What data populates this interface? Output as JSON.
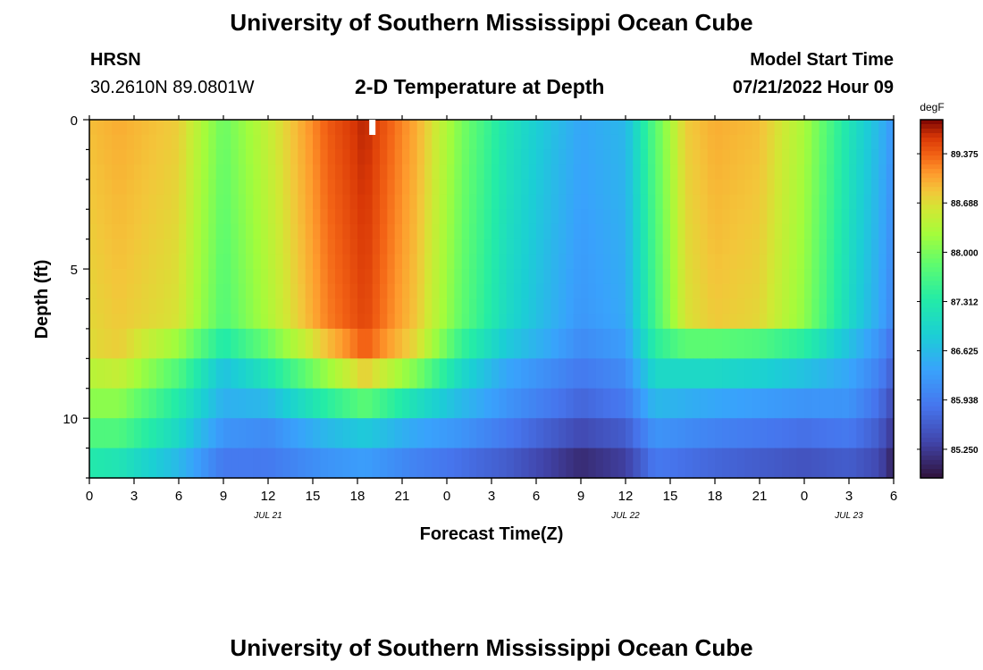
{
  "page_title": "University of Southern Mississippi Ocean Cube",
  "footer_title": "University of Southern Mississippi Ocean Cube",
  "station": {
    "name": "HRSN",
    "coords": "30.2610N  89.0801W"
  },
  "model": {
    "label": "Model Start Time",
    "value": "07/21/2022 Hour 09"
  },
  "chart_data": {
    "type": "heatmap",
    "title": "2-D Temperature at Depth",
    "xlabel": "Forecast Time(Z)",
    "ylabel": "Depth (ft)",
    "x_range_hours": [
      0,
      54
    ],
    "x_ticks": [
      {
        "h": 0,
        "label": "0"
      },
      {
        "h": 3,
        "label": "3"
      },
      {
        "h": 6,
        "label": "6"
      },
      {
        "h": 9,
        "label": "9"
      },
      {
        "h": 12,
        "label": "12"
      },
      {
        "h": 15,
        "label": "15"
      },
      {
        "h": 18,
        "label": "18"
      },
      {
        "h": 21,
        "label": "21"
      },
      {
        "h": 24,
        "label": "0"
      },
      {
        "h": 27,
        "label": "3"
      },
      {
        "h": 30,
        "label": "6"
      },
      {
        "h": 33,
        "label": "9"
      },
      {
        "h": 36,
        "label": "12"
      },
      {
        "h": 39,
        "label": "15"
      },
      {
        "h": 42,
        "label": "18"
      },
      {
        "h": 45,
        "label": "21"
      },
      {
        "h": 48,
        "label": "0"
      },
      {
        "h": 51,
        "label": "3"
      },
      {
        "h": 54,
        "label": "6"
      }
    ],
    "date_labels": [
      {
        "h": 12,
        "label": "JUL 21"
      },
      {
        "h": 36,
        "label": "JUL 22"
      },
      {
        "h": 51,
        "label": "JUL 23"
      }
    ],
    "y_range_ft": [
      0,
      12
    ],
    "y_ticks": [
      0,
      5,
      10
    ],
    "colorbar": {
      "unit": "degF",
      "min": 84.85,
      "max": 89.85,
      "ticks": [
        "89.375",
        "88.688",
        "88.000",
        "87.312",
        "86.625",
        "85.938",
        "85.250"
      ]
    },
    "marker_hour": 19,
    "surface_profile_hours": [
      0,
      2,
      6,
      9,
      12,
      16,
      18.5,
      22,
      25,
      28,
      31,
      33,
      36,
      38,
      40,
      42,
      45,
      48,
      51,
      53,
      54
    ],
    "surface_profile_degF": [
      88.9,
      89.0,
      88.8,
      87.9,
      88.5,
      89.4,
      89.7,
      89.0,
      88.0,
      87.2,
      86.7,
      86.4,
      86.6,
      87.8,
      88.8,
      89.0,
      88.9,
      88.3,
      87.2,
      86.6,
      86.2
    ],
    "depth_layers_ft": [
      {
        "top": 0,
        "bottom": 7,
        "delta": [
          0.0,
          0.0,
          0.0,
          0.0,
          0.0,
          0.0,
          0.0,
          0.0,
          0.0,
          0.0,
          0.0,
          0.0,
          0.0,
          0.0,
          0.0,
          0.0,
          0.0,
          0.0,
          0.0,
          0.0,
          0.0
        ]
      },
      {
        "top": 7,
        "bottom": 8,
        "delta": [
          -0.2,
          -0.2,
          -0.6,
          -0.6,
          -0.6,
          -0.5,
          -0.3,
          -0.3,
          -0.5,
          -0.4,
          -0.3,
          -0.3,
          -0.3,
          -0.4,
          -1.0,
          -1.2,
          -1.2,
          -0.9,
          -0.5,
          -0.4,
          -0.4
        ]
      },
      {
        "top": 8,
        "bottom": 9,
        "delta": [
          -0.5,
          -0.5,
          -1.1,
          -1.2,
          -1.3,
          -1.2,
          -0.9,
          -1.0,
          -1.0,
          -0.8,
          -0.6,
          -0.5,
          -0.5,
          -0.8,
          -1.8,
          -2.0,
          -2.0,
          -1.6,
          -0.8,
          -0.6,
          -0.6
        ]
      },
      {
        "top": 9,
        "bottom": 10,
        "delta": [
          -0.8,
          -0.9,
          -1.5,
          -1.4,
          -1.9,
          -2.0,
          -1.9,
          -1.9,
          -1.4,
          -1.0,
          -0.8,
          -0.7,
          -0.7,
          -1.2,
          -2.3,
          -2.6,
          -2.6,
          -2.1,
          -1.0,
          -0.8,
          -0.8
        ]
      },
      {
        "top": 10,
        "bottom": 11,
        "delta": [
          -1.2,
          -1.3,
          -1.8,
          -1.7,
          -2.4,
          -2.8,
          -2.9,
          -2.6,
          -1.8,
          -1.3,
          -1.1,
          -1.0,
          -1.0,
          -1.6,
          -2.7,
          -3.0,
          -3.0,
          -2.5,
          -1.3,
          -1.0,
          -1.0
        ]
      },
      {
        "top": 11,
        "bottom": 12,
        "delta": [
          -1.6,
          -1.8,
          -2.2,
          -2.0,
          -2.6,
          -3.2,
          -3.4,
          -3.0,
          -2.2,
          -1.6,
          -1.4,
          -1.3,
          -1.3,
          -1.9,
          -3.0,
          -3.3,
          -3.3,
          -2.8,
          -1.6,
          -1.2,
          -1.2
        ]
      }
    ]
  }
}
